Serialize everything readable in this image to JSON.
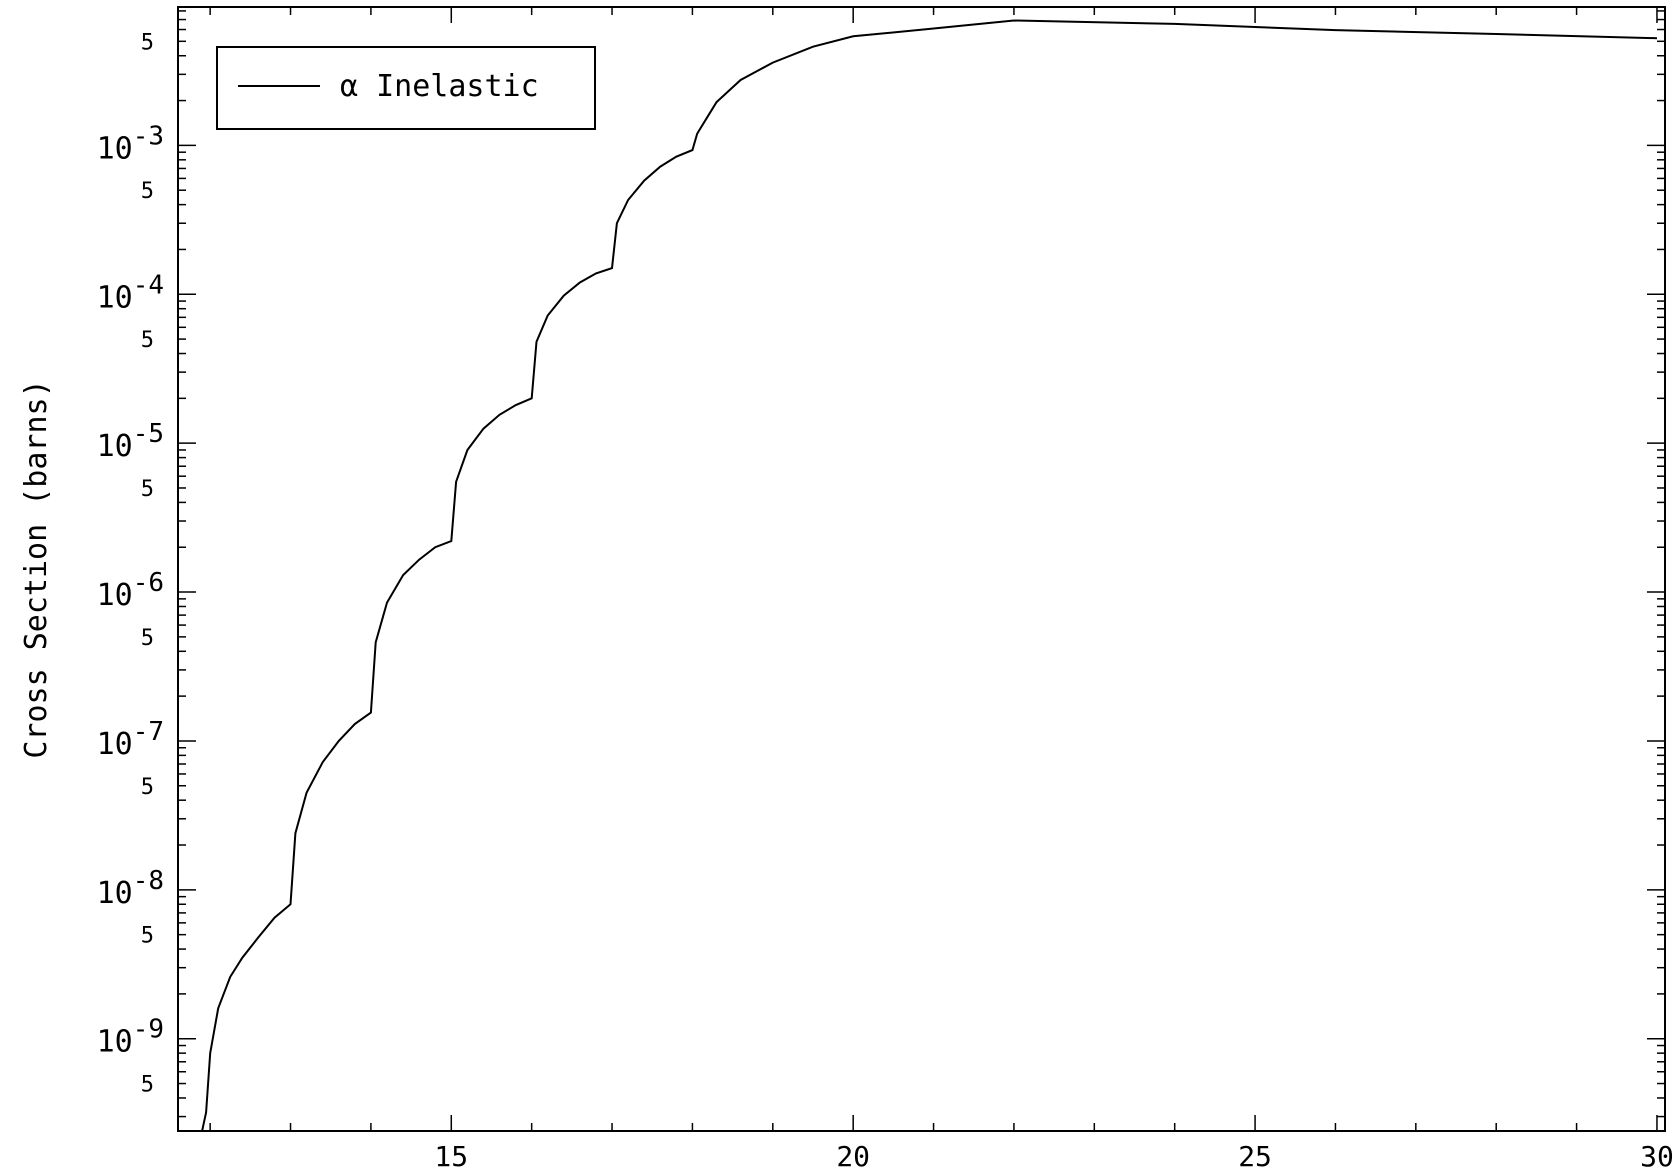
{
  "chart_data": {
    "type": "line",
    "title": "",
    "xlabel": "",
    "ylabel": "Cross Section (barns)",
    "xlim": [
      11.6,
      30.1
    ],
    "ylim": [
      2.4e-10,
      0.0085
    ],
    "yscale": "log",
    "grid": false,
    "legend_position": "top-left",
    "x_ticks": [
      {
        "value": 15,
        "label": "15"
      },
      {
        "value": 20,
        "label": "20"
      },
      {
        "value": 25,
        "label": "25"
      },
      {
        "value": 30,
        "label": "30"
      }
    ],
    "y_major_ticks": [
      {
        "value": 1e-09,
        "base": "10",
        "exp": "-9"
      },
      {
        "value": 1e-08,
        "base": "10",
        "exp": "-8"
      },
      {
        "value": 1e-07,
        "base": "10",
        "exp": "-7"
      },
      {
        "value": 1e-06,
        "base": "10",
        "exp": "-6"
      },
      {
        "value": 1e-05,
        "base": "10",
        "exp": "-5"
      },
      {
        "value": 0.0001,
        "base": "10",
        "exp": "-4"
      },
      {
        "value": 0.001,
        "base": "10",
        "exp": "-3"
      }
    ],
    "y_minor_labels": [
      {
        "value": 5e-10,
        "label": "5"
      },
      {
        "value": 5e-09,
        "label": "5"
      },
      {
        "value": 5e-08,
        "label": "5"
      },
      {
        "value": 5e-07,
        "label": "5"
      },
      {
        "value": 5e-06,
        "label": "5"
      },
      {
        "value": 5e-05,
        "label": "5"
      },
      {
        "value": 0.0005,
        "label": "5"
      },
      {
        "value": 0.005,
        "label": "5"
      }
    ],
    "series": [
      {
        "name": "α Inelastic",
        "color": "#000000",
        "points": [
          [
            11.9,
            2.4e-10
          ],
          [
            11.95,
            3.2e-10
          ],
          [
            12.0,
            8e-10
          ],
          [
            12.1,
            1.6e-09
          ],
          [
            12.25,
            2.6e-09
          ],
          [
            12.4,
            3.5e-09
          ],
          [
            12.6,
            4.8e-09
          ],
          [
            12.8,
            6.5e-09
          ],
          [
            13.0,
            8e-09
          ],
          [
            13.06,
            2.4e-08
          ],
          [
            13.2,
            4.5e-08
          ],
          [
            13.4,
            7.2e-08
          ],
          [
            13.6,
            1e-07
          ],
          [
            13.8,
            1.3e-07
          ],
          [
            14.0,
            1.55e-07
          ],
          [
            14.06,
            4.6e-07
          ],
          [
            14.2,
            8.5e-07
          ],
          [
            14.4,
            1.3e-06
          ],
          [
            14.6,
            1.65e-06
          ],
          [
            14.8,
            2e-06
          ],
          [
            15.0,
            2.2e-06
          ],
          [
            15.06,
            5.5e-06
          ],
          [
            15.2,
            9e-06
          ],
          [
            15.4,
            1.25e-05
          ],
          [
            15.6,
            1.55e-05
          ],
          [
            15.8,
            1.8e-05
          ],
          [
            16.0,
            2e-05
          ],
          [
            16.06,
            4.8e-05
          ],
          [
            16.2,
            7.2e-05
          ],
          [
            16.4,
            9.8e-05
          ],
          [
            16.6,
            0.00012
          ],
          [
            16.8,
            0.000138
          ],
          [
            17.0,
            0.00015
          ],
          [
            17.06,
            0.0003
          ],
          [
            17.2,
            0.00043
          ],
          [
            17.4,
            0.00058
          ],
          [
            17.6,
            0.00072
          ],
          [
            17.8,
            0.00084
          ],
          [
            18.0,
            0.00093
          ],
          [
            18.06,
            0.0012
          ],
          [
            18.3,
            0.00195
          ],
          [
            18.6,
            0.00275
          ],
          [
            19.0,
            0.0036
          ],
          [
            19.5,
            0.0046
          ],
          [
            20.0,
            0.0054
          ],
          [
            21.0,
            0.0061
          ],
          [
            22.0,
            0.0069
          ],
          [
            24.0,
            0.00655
          ],
          [
            26.0,
            0.00595
          ],
          [
            28.0,
            0.0056
          ],
          [
            30.0,
            0.00525
          ]
        ]
      }
    ]
  }
}
